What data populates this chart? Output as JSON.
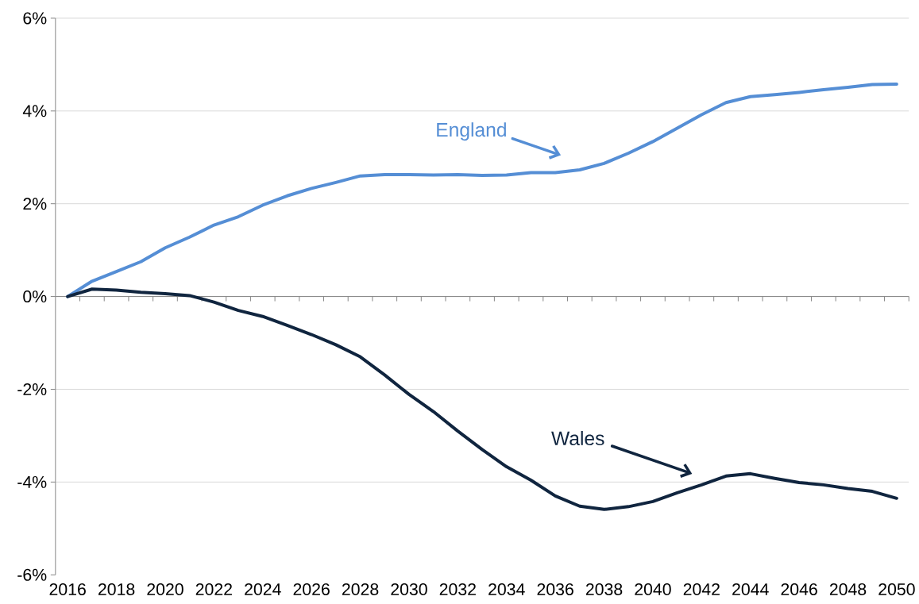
{
  "chart_data": {
    "type": "line",
    "categories": [
      "2016",
      null,
      "2018",
      null,
      "2020",
      null,
      "2022",
      null,
      "2024",
      null,
      "2026",
      null,
      "2028",
      null,
      "2030",
      null,
      "2032",
      null,
      "2034",
      null,
      "2036",
      null,
      "2038",
      null,
      "2040",
      null,
      "2042",
      null,
      "2044",
      null,
      "2046",
      null,
      "2048",
      null,
      "2050"
    ],
    "series": [
      {
        "name": "England",
        "color": "#558ed5",
        "values": [
          0,
          0.33,
          0.54,
          0.75,
          1.05,
          1.28,
          1.54,
          1.72,
          1.97,
          2.17,
          2.33,
          2.46,
          2.6,
          2.63,
          2.63,
          2.62,
          2.63,
          2.61,
          2.62,
          2.67,
          2.67,
          2.73,
          2.87,
          3.09,
          3.34,
          3.63,
          3.92,
          4.18,
          4.31,
          4.35,
          4.4,
          4.46,
          4.51,
          4.57,
          4.58
        ]
      },
      {
        "name": "Wales",
        "color": "#10253f",
        "values": [
          0,
          0.16,
          0.14,
          0.09,
          0.06,
          0.02,
          -0.12,
          -0.3,
          -0.43,
          -0.62,
          -0.82,
          -1.04,
          -1.3,
          -1.69,
          -2.11,
          -2.48,
          -2.9,
          -3.3,
          -3.67,
          -3.96,
          -4.3,
          -4.52,
          -4.59,
          -4.53,
          -4.42,
          -4.23,
          -4.06,
          -3.87,
          -3.82,
          -3.92,
          -4.01,
          -4.06,
          -4.14,
          -4.2,
          -4.35
        ]
      }
    ],
    "ylim": [
      -6,
      6
    ],
    "yticks": [
      {
        "value": -6,
        "label": "-6%"
      },
      {
        "value": -4,
        "label": "-4%"
      },
      {
        "value": -2,
        "label": "-2%"
      },
      {
        "value": 0,
        "label": "0%"
      },
      {
        "value": 2,
        "label": "2%"
      },
      {
        "value": 4,
        "label": "4%"
      },
      {
        "value": 6,
        "label": "6%"
      }
    ],
    "grid": "y"
  }
}
